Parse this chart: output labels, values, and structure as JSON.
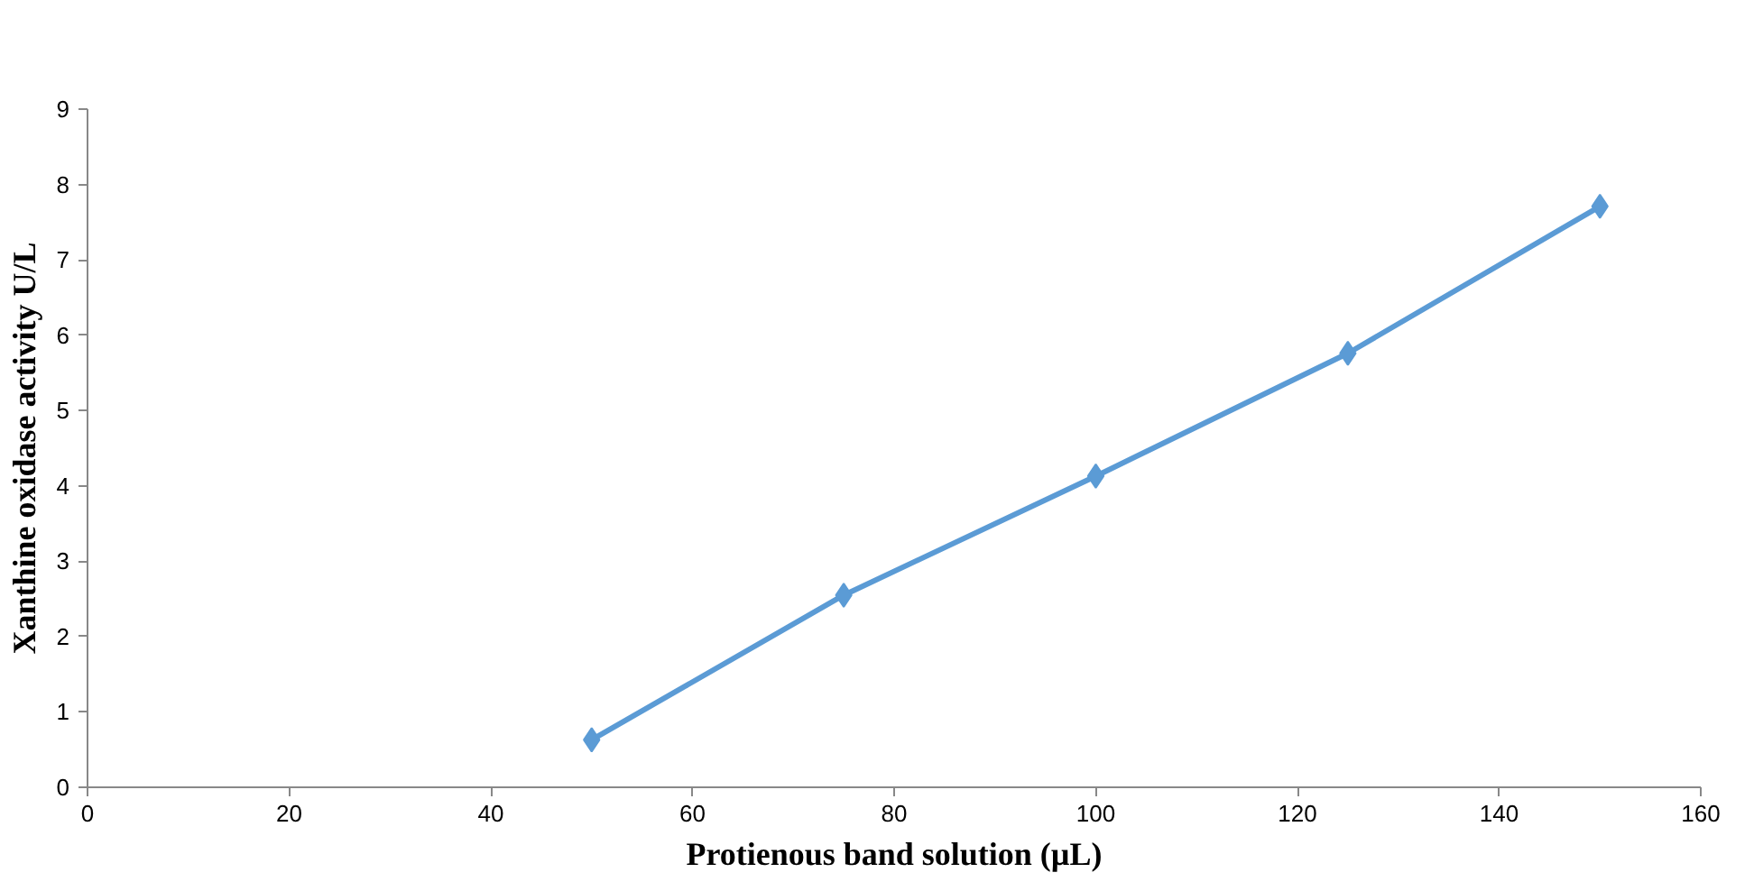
{
  "chart_data": {
    "type": "line",
    "xlabel": "Protienous band solution (µL)",
    "ylabel": "Xanthine oxidase activity U/L",
    "x": [
      50,
      75,
      100,
      125,
      150
    ],
    "series": [
      {
        "color": "#5b9bd5",
        "values": [
          0.63,
          2.55,
          4.13,
          5.76,
          7.71
        ]
      }
    ],
    "xlim": [
      0,
      160
    ],
    "xticks": [
      0,
      20,
      40,
      60,
      80,
      100,
      120,
      140,
      160
    ],
    "ylim": [
      0,
      9
    ],
    "yticks": [
      0,
      1,
      2,
      3,
      4,
      5,
      6,
      7,
      8,
      9
    ],
    "grid": false,
    "marker": "diamond",
    "line_style": "solid"
  }
}
